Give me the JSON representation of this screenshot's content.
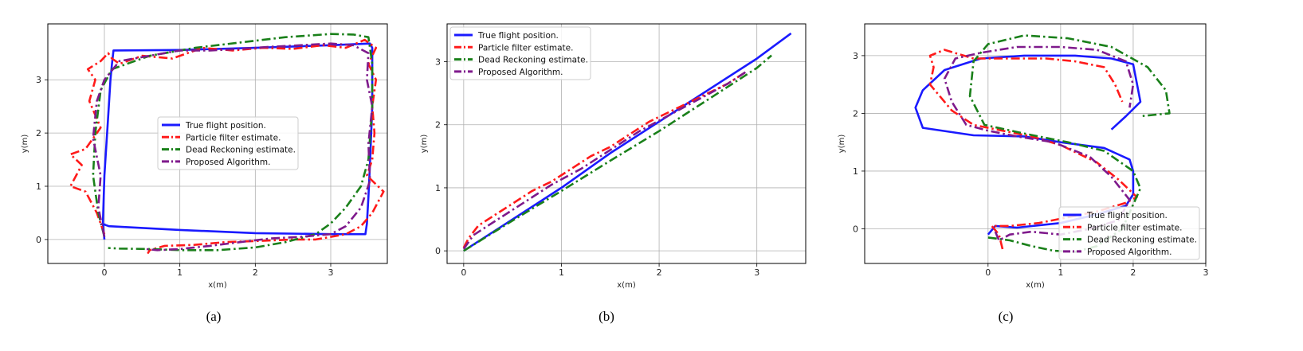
{
  "legend_labels": [
    "True flight position.",
    "Particle filter estimate.",
    "Dead Reckoning estimate.",
    "Proposed Algorithm."
  ],
  "series_colors": [
    "#1a1aff",
    "#ff1a1a",
    "#1a801a",
    "#7f1a8c"
  ],
  "series_dash": [
    "solid",
    "dashdot",
    "dashdot",
    "dashdot"
  ],
  "chart_data": [
    {
      "type": "line",
      "caption": "(a)",
      "xlabel": "x(m)",
      "ylabel": "y(m)",
      "xlim": [
        -0.75,
        3.75
      ],
      "ylim": [
        -0.45,
        4.05
      ],
      "xticks": [
        0,
        1,
        2,
        3
      ],
      "yticks": [
        0,
        1,
        2,
        3
      ],
      "grid": true,
      "legend_position": "center",
      "series": [
        {
          "name": "True flight position.",
          "x": [
            0,
            -0.02,
            0.0,
            0.05,
            0.08,
            0.1,
            0.12,
            1.0,
            2.0,
            3.0,
            3.52,
            3.55,
            3.55,
            3.52,
            3.5,
            3.48,
            3.46,
            3.0,
            2.0,
            1.0,
            0.06,
            0.0,
            0.0
          ],
          "y": [
            0.0,
            0.3,
            1.2,
            2.3,
            3.0,
            3.3,
            3.55,
            3.56,
            3.6,
            3.65,
            3.68,
            3.6,
            2.5,
            1.4,
            0.8,
            0.3,
            0.1,
            0.1,
            0.12,
            0.18,
            0.25,
            0.28,
            0.3
          ]
        },
        {
          "name": "Particle filter estimate.",
          "x": [
            0.0,
            -0.1,
            -0.25,
            -0.45,
            -0.3,
            -0.45,
            -0.25,
            -0.05,
            -0.2,
            -0.12,
            -0.22,
            -0.05,
            0.05,
            0.1,
            0.2,
            0.5,
            0.9,
            1.3,
            1.7,
            2.1,
            2.5,
            2.9,
            3.2,
            3.45,
            3.6,
            3.5,
            3.6,
            3.55,
            3.58,
            3.55,
            3.48,
            3.7,
            3.55,
            3.4,
            3.2,
            3.0,
            2.8,
            2.5,
            2.0,
            1.6,
            1.2,
            0.8,
            0.6,
            0.58,
            0.62
          ],
          "y": [
            0.1,
            0.5,
            0.9,
            1.0,
            1.4,
            1.6,
            1.7,
            2.1,
            2.6,
            3.0,
            3.2,
            3.35,
            3.5,
            3.4,
            3.3,
            3.45,
            3.4,
            3.6,
            3.55,
            3.6,
            3.58,
            3.65,
            3.6,
            3.75,
            3.6,
            3.3,
            3.0,
            2.5,
            2.0,
            1.5,
            1.2,
            0.9,
            0.5,
            0.25,
            0.1,
            0.05,
            0.0,
            0.0,
            -0.03,
            -0.05,
            -0.1,
            -0.12,
            -0.2,
            -0.25,
            -0.15
          ]
        },
        {
          "name": "Dead Reckoning estimate.",
          "x": [
            0.0,
            -0.08,
            -0.15,
            -0.12,
            -0.05,
            0.1,
            0.6,
            1.2,
            1.8,
            2.4,
            3.0,
            3.3,
            3.5,
            3.55,
            3.55,
            3.5,
            3.4,
            3.2,
            3.0,
            2.8,
            2.4,
            2.0,
            1.5,
            1.0,
            0.6,
            0.2,
            0.05
          ],
          "y": [
            0.05,
            0.5,
            1.2,
            2.0,
            2.8,
            3.2,
            3.45,
            3.6,
            3.7,
            3.8,
            3.86,
            3.85,
            3.8,
            3.3,
            2.5,
            1.5,
            1.0,
            0.6,
            0.3,
            0.1,
            -0.05,
            -0.15,
            -0.2,
            -0.2,
            -0.18,
            -0.17,
            -0.16
          ]
        },
        {
          "name": "Proposed Algorithm.",
          "x": [
            0.0,
            -0.08,
            -0.05,
            -0.15,
            -0.1,
            0.0,
            0.2,
            0.6,
            1.0,
            1.4,
            1.8,
            2.2,
            2.6,
            3.0,
            3.3,
            3.5,
            3.48,
            3.55,
            3.5,
            3.52,
            3.4,
            3.2,
            3.0,
            2.6,
            2.2,
            1.8,
            1.4,
            1.0,
            0.7,
            0.55
          ],
          "y": [
            0.05,
            0.6,
            1.2,
            1.9,
            2.6,
            3.0,
            3.35,
            3.45,
            3.55,
            3.55,
            3.58,
            3.62,
            3.65,
            3.68,
            3.65,
            3.5,
            3.0,
            2.5,
            1.8,
            1.1,
            0.6,
            0.25,
            0.1,
            0.05,
            0.02,
            -0.05,
            -0.12,
            -0.18,
            -0.2,
            -0.18
          ]
        }
      ]
    },
    {
      "type": "line",
      "caption": "(b)",
      "xlabel": "x(m)",
      "ylabel": "y(m)",
      "xlim": [
        -0.17,
        3.5
      ],
      "ylim": [
        -0.2,
        3.6
      ],
      "xticks": [
        0,
        1,
        2,
        3
      ],
      "yticks": [
        0,
        1,
        2,
        3
      ],
      "grid": true,
      "legend_position": "upper left",
      "series": [
        {
          "name": "True flight position.",
          "x": [
            0.0,
            0.5,
            1.0,
            1.5,
            2.0,
            2.5,
            3.0,
            3.35
          ],
          "y": [
            0.0,
            0.5,
            1.0,
            1.55,
            2.05,
            2.55,
            3.05,
            3.45
          ]
        },
        {
          "name": "Particle filter estimate.",
          "x": [
            0.0,
            0.05,
            0.15,
            0.3,
            0.5,
            0.7,
            0.9,
            1.1,
            1.3,
            1.5,
            1.7,
            1.9,
            2.1,
            2.3,
            2.5,
            2.7,
            2.9
          ],
          "y": [
            0.05,
            0.2,
            0.4,
            0.55,
            0.75,
            0.95,
            1.1,
            1.3,
            1.5,
            1.65,
            1.85,
            2.05,
            2.2,
            2.35,
            2.5,
            2.65,
            2.85
          ]
        },
        {
          "name": "Dead Reckoning estimate.",
          "x": [
            0.0,
            0.5,
            1.0,
            1.5,
            2.0,
            2.5,
            3.0,
            3.15
          ],
          "y": [
            0.0,
            0.48,
            0.95,
            1.43,
            1.9,
            2.4,
            2.9,
            3.1
          ]
        },
        {
          "name": "Proposed Algorithm.",
          "x": [
            0.0,
            0.1,
            0.3,
            0.6,
            0.9,
            1.2,
            1.5,
            1.8,
            2.1,
            2.4,
            2.7,
            2.9
          ],
          "y": [
            0.03,
            0.25,
            0.45,
            0.75,
            1.05,
            1.3,
            1.6,
            1.9,
            2.15,
            2.4,
            2.65,
            2.85
          ]
        }
      ]
    },
    {
      "type": "line",
      "caption": "(c)",
      "xlabel": "x(m)",
      "ylabel": "y(m)",
      "xlim": [
        -1.7,
        3.0
      ],
      "ylim": [
        -0.6,
        3.55
      ],
      "xticks": [
        0,
        1,
        2,
        3
      ],
      "yticks": [
        0,
        1,
        2,
        3
      ],
      "grid": true,
      "legend_position": "lower right",
      "series": [
        {
          "name": "True flight position.",
          "x": [
            0.0,
            0.1,
            0.4,
            1.0,
            1.5,
            1.9,
            2.0,
            2.0,
            1.95,
            1.6,
            1.0,
            0.5,
            -0.2,
            -0.9,
            -1.0,
            -0.9,
            -0.6,
            -0.1,
            0.5,
            1.2,
            1.7,
            2.0,
            2.1,
            1.9,
            1.7
          ],
          "y": [
            -0.1,
            0.05,
            0.02,
            0.1,
            0.25,
            0.4,
            0.6,
            1.0,
            1.2,
            1.4,
            1.5,
            1.6,
            1.62,
            1.75,
            2.1,
            2.4,
            2.75,
            2.95,
            3.0,
            3.0,
            2.95,
            2.85,
            2.2,
            1.95,
            1.72
          ]
        },
        {
          "name": "Particle filter estimate.",
          "x": [
            0.2,
            0.15,
            0.05,
            0.3,
            0.7,
            1.1,
            1.5,
            1.9,
            2.05,
            1.8,
            1.5,
            1.0,
            0.6,
            0.2,
            -0.2,
            -0.5,
            -0.8,
            -0.75,
            -0.8,
            -0.6,
            -0.2,
            0.3,
            0.8,
            1.2,
            1.6,
            1.75,
            1.85
          ],
          "y": [
            -0.35,
            -0.1,
            0.05,
            0.05,
            0.1,
            0.2,
            0.3,
            0.45,
            0.55,
            0.85,
            1.15,
            1.45,
            1.6,
            1.7,
            1.8,
            2.05,
            2.5,
            2.8,
            3.0,
            3.1,
            2.95,
            2.95,
            2.95,
            2.9,
            2.8,
            2.5,
            2.2
          ]
        },
        {
          "name": "Dead Reckoning estimate.",
          "x": [
            0.0,
            0.3,
            0.6,
            0.9,
            1.2,
            1.5,
            1.85,
            2.1,
            2.0,
            1.6,
            1.1,
            0.5,
            -0.05,
            -0.25,
            -0.2,
            0.0,
            0.5,
            1.1,
            1.7,
            2.2,
            2.45,
            2.5,
            2.1
          ],
          "y": [
            -0.15,
            -0.2,
            -0.3,
            -0.38,
            -0.4,
            -0.3,
            0.0,
            0.7,
            1.0,
            1.35,
            1.5,
            1.65,
            1.8,
            2.3,
            2.9,
            3.2,
            3.35,
            3.3,
            3.15,
            2.8,
            2.4,
            2.0,
            1.95
          ]
        },
        {
          "name": "Proposed Algorithm.",
          "x": [
            0.1,
            0.15,
            0.3,
            0.6,
            1.0,
            1.4,
            1.8,
            1.95,
            1.7,
            1.4,
            0.9,
            0.4,
            0.0,
            -0.3,
            -0.5,
            -0.6,
            -0.45,
            -0.1,
            0.4,
            1.0,
            1.5,
            1.9,
            2.0,
            1.95
          ],
          "y": [
            -0.05,
            -0.2,
            -0.1,
            -0.05,
            -0.1,
            0.0,
            0.15,
            0.5,
            0.9,
            1.25,
            1.5,
            1.6,
            1.7,
            1.8,
            2.2,
            2.6,
            2.95,
            3.05,
            3.15,
            3.15,
            3.1,
            2.9,
            2.5,
            2.1
          ]
        }
      ]
    }
  ]
}
